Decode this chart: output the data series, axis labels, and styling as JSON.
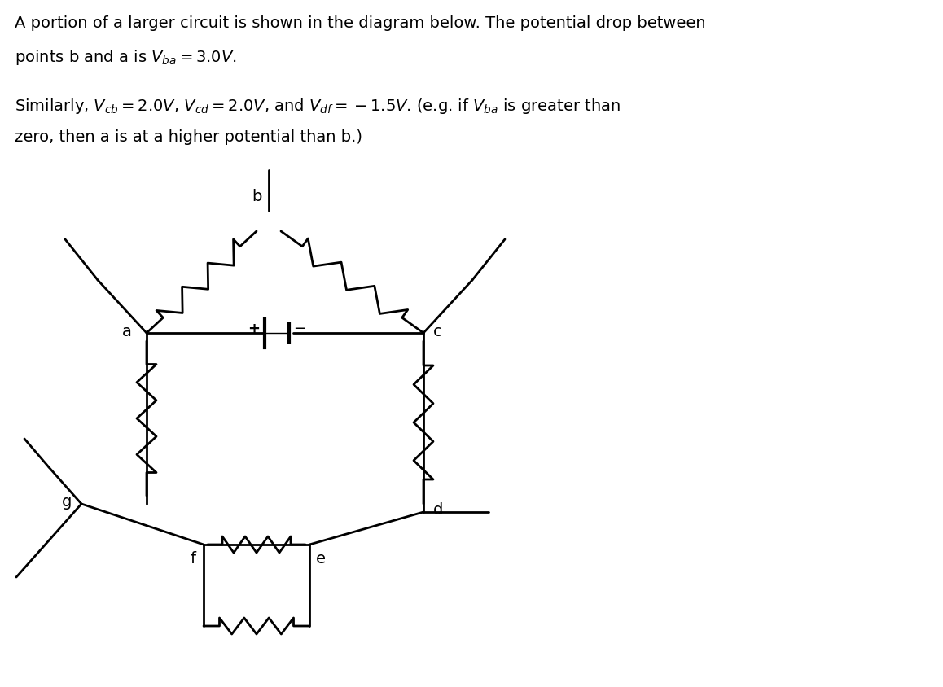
{
  "title_line1": "A portion of a larger circuit is shown in the diagram below. The potential drop between",
  "title_line2": "points b and a is $V_{ba} = 3.0V$.",
  "title_line3": "Similarly, $V_{cb} = 2.0V$, $V_{cd} = 2.0V$, and $V_{df} = -1.5V$. (e.g. if $V_{ba}$ is greater than",
  "title_line4": "zero, then a is at a higher potential than b.)",
  "bg_color": "#ffffff",
  "line_color": "#000000",
  "font_size": 14
}
